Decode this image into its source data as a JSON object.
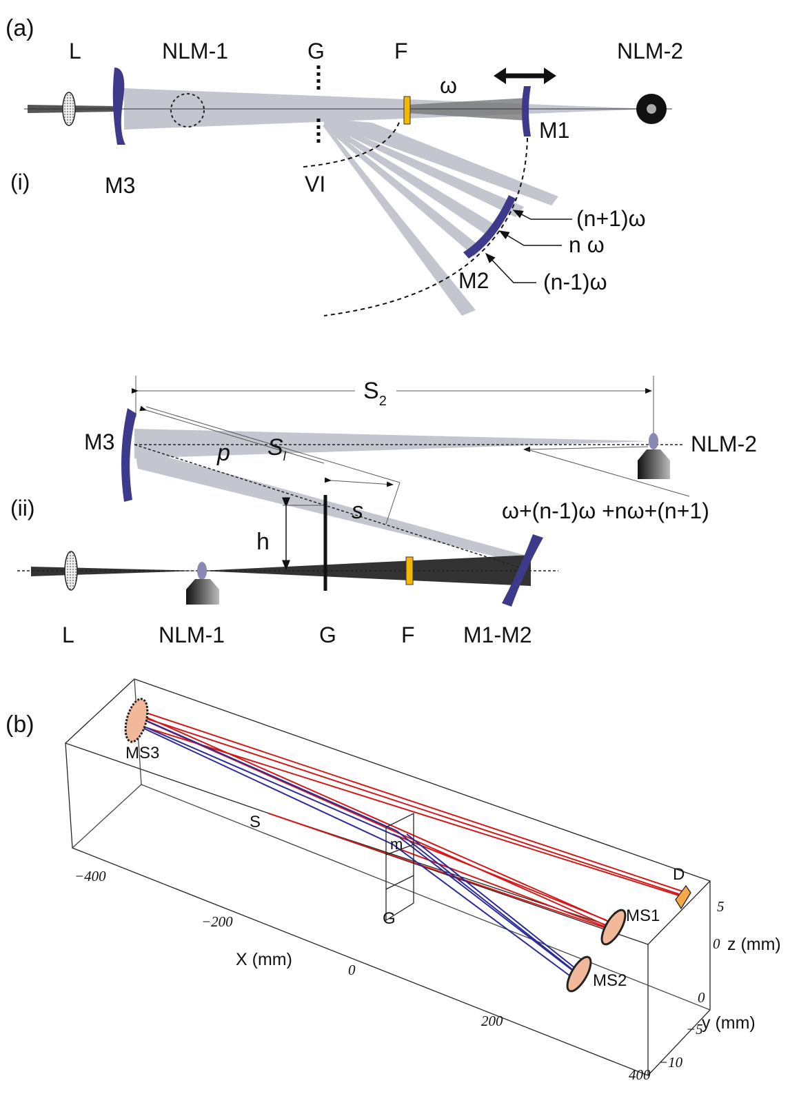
{
  "panel_a": {
    "label": "(a)",
    "part_i": {
      "label": "(i)",
      "L": "L",
      "NLM_1": "NLM-1",
      "G": "G",
      "F": "F",
      "NLM_2": "NLM-2",
      "omega": "ω",
      "M1": "M1",
      "M3": "M3",
      "VI": "VI",
      "M2": "M2",
      "orders": [
        "(n+1)ω",
        "n ω",
        "(n-1)ω"
      ]
    },
    "part_ii": {
      "label": "(ii)",
      "s2": {
        "main": "S",
        "sub": "2"
      },
      "M3": "M3",
      "NLM_2": "NLM-2",
      "p": "p",
      "s1": {
        "main": "S",
        "sub": "l"
      },
      "s": "s",
      "h": "h",
      "sum": "ω+(n-1)ω +nω+(n+1)",
      "L": "L",
      "NLM_1": "NLM-1",
      "G": "G",
      "F": "F",
      "M1_M2": "M1-M2"
    }
  },
  "panel_b": {
    "label": "(b)",
    "MS3": "MS3",
    "S": "S",
    "m": "m",
    "G": "G",
    "D": "D",
    "MS1": "MS1",
    "MS2": "MS2",
    "x_axis": {
      "title": "X (mm)",
      "ticks": [
        "−400",
        "−200",
        "0",
        "200",
        "400"
      ]
    },
    "z_axis": {
      "title": "z (mm)",
      "ticks": [
        "5",
        "0"
      ]
    },
    "y_axis": {
      "title": "y (mm)",
      "ticks": [
        "0",
        "−5",
        "−10"
      ]
    }
  }
}
